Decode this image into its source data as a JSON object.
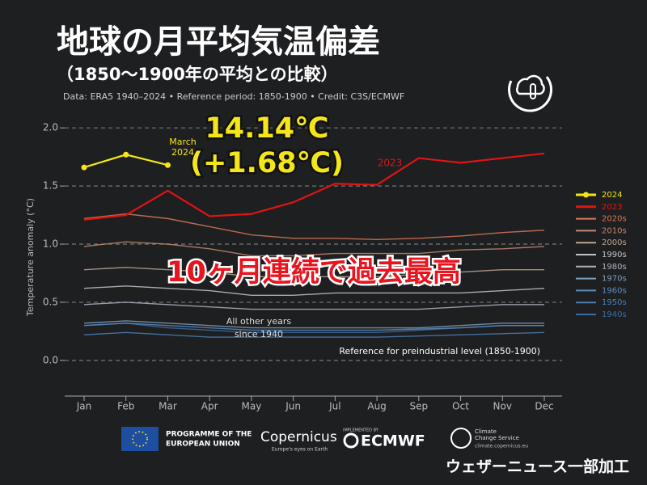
{
  "chart_data": {
    "type": "line",
    "title": "地球の月平均気温偏差",
    "subtitle": "（1850〜1900年の平均との比較）",
    "source": "Data: ERA5 1940–2024 • Reference period: 1850-1900 • Credit: C3S/ECMWF",
    "y_label": "Temperature anomaly (°C)",
    "categories": [
      "Jan",
      "Feb",
      "Mar",
      "Apr",
      "May",
      "Jun",
      "Jul",
      "Aug",
      "Sep",
      "Oct",
      "Nov",
      "Dec"
    ],
    "ylim": [
      -0.3,
      2.05
    ],
    "yticks": [
      {
        "value": 0,
        "label": "0.0"
      },
      {
        "value": 0.5,
        "label": "0.5"
      },
      {
        "value": 1,
        "label": "1.0"
      },
      {
        "value": 1.5,
        "label": "1.5"
      },
      {
        "value": 2,
        "label": "2.0"
      }
    ],
    "grid": true,
    "legend": "right",
    "series": [
      {
        "name": "2024",
        "color": "#f5e61a",
        "markers": true,
        "values": [
          1.66,
          1.77,
          1.68,
          null,
          null,
          null,
          null,
          null,
          null,
          null,
          null,
          null
        ]
      },
      {
        "name": "2023",
        "color": "#e01414",
        "values": [
          1.21,
          1.25,
          1.46,
          1.24,
          1.26,
          1.36,
          1.52,
          1.51,
          1.74,
          1.7,
          1.74,
          1.78
        ]
      },
      {
        "name": "2020s",
        "color": "#d9775a",
        "values": [
          1.22,
          1.26,
          1.22,
          1.15,
          1.08,
          1.05,
          1.05,
          1.04,
          1.05,
          1.07,
          1.1,
          1.12
        ]
      },
      {
        "name": "2010s",
        "color": "#c48a70",
        "values": [
          0.98,
          1.02,
          1.0,
          0.96,
          0.9,
          0.9,
          0.92,
          0.92,
          0.92,
          0.95,
          0.96,
          0.98
        ]
      },
      {
        "name": "2000s",
        "color": "#bfa592",
        "values": [
          0.78,
          0.8,
          0.78,
          0.76,
          0.72,
          0.72,
          0.72,
          0.72,
          0.74,
          0.76,
          0.78,
          0.78
        ]
      },
      {
        "name": "1990s",
        "color": "#c4c4c4",
        "values": [
          0.62,
          0.64,
          0.62,
          0.6,
          0.56,
          0.56,
          0.58,
          0.58,
          0.58,
          0.58,
          0.6,
          0.62
        ]
      },
      {
        "name": "1980s",
        "color": "#aab4be",
        "values": [
          0.48,
          0.5,
          0.48,
          0.46,
          0.44,
          0.44,
          0.44,
          0.44,
          0.44,
          0.46,
          0.48,
          0.48
        ]
      },
      {
        "name": "1970s",
        "color": "#7d9fbd",
        "values": [
          0.32,
          0.34,
          0.32,
          0.3,
          0.28,
          0.28,
          0.28,
          0.28,
          0.28,
          0.3,
          0.32,
          0.32
        ]
      },
      {
        "name": "1960s",
        "color": "#5d8cbb",
        "values": [
          0.3,
          0.32,
          0.3,
          0.28,
          0.26,
          0.26,
          0.26,
          0.26,
          0.27,
          0.28,
          0.3,
          0.3
        ]
      },
      {
        "name": "1950s",
        "color": "#4a7fb5",
        "values": [
          0.22,
          0.24,
          0.22,
          0.2,
          0.2,
          0.2,
          0.2,
          0.2,
          0.21,
          0.22,
          0.23,
          0.24
        ]
      },
      {
        "name": "1940s",
        "color": "#3b6da6",
        "values": [
          0.3,
          0.32,
          0.28,
          0.26,
          0.24,
          0.24,
          0.24,
          0.24,
          0.26,
          0.28,
          0.3,
          0.3
        ]
      }
    ],
    "annotations": {
      "record": "14.14℃",
      "anomaly": "(+1.68℃)",
      "march": [
        "March",
        "2024"
      ],
      "year2023": "2023",
      "headline": "10ヶ月連続で過去最高",
      "others": [
        "All other years",
        "since 1940"
      ],
      "reference": "Reference for preindustrial level (1850-1900)"
    }
  },
  "footer": {
    "eu": [
      "PROGRAMME OF THE",
      "EUROPEAN UNION"
    ],
    "copernicus": "Copernicus",
    "copernicus_sub": "Europe's eyes on Earth",
    "implemented": "IMPLEMENTED BY",
    "ecmwf": "ECMWF",
    "c3s": [
      "Climate",
      "Change Service"
    ],
    "c3s_url": "climate.copernicus.eu",
    "credit": "ウェザーニュース一部加工"
  }
}
